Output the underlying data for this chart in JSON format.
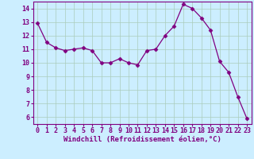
{
  "x": [
    0,
    1,
    2,
    3,
    4,
    5,
    6,
    7,
    8,
    9,
    10,
    11,
    12,
    13,
    14,
    15,
    16,
    17,
    18,
    19,
    20,
    21,
    22,
    23
  ],
  "y": [
    12.9,
    11.5,
    11.1,
    10.9,
    11.0,
    11.1,
    10.9,
    10.0,
    10.0,
    10.3,
    10.0,
    9.85,
    10.9,
    11.0,
    12.0,
    12.7,
    14.3,
    14.0,
    13.3,
    12.4,
    10.1,
    9.3,
    7.5,
    5.9
  ],
  "line_color": "#800080",
  "marker": "D",
  "marker_size": 2.5,
  "bg_color": "#cceeff",
  "grid_color": "#aaccbb",
  "xlabel": "Windchill (Refroidissement éolien,°C)",
  "xlim": [
    -0.5,
    23.5
  ],
  "ylim": [
    5.5,
    14.5
  ],
  "yticks": [
    6,
    7,
    8,
    9,
    10,
    11,
    12,
    13,
    14
  ],
  "xticks": [
    0,
    1,
    2,
    3,
    4,
    5,
    6,
    7,
    8,
    9,
    10,
    11,
    12,
    13,
    14,
    15,
    16,
    17,
    18,
    19,
    20,
    21,
    22,
    23
  ],
  "xlabel_fontsize": 6.5,
  "tick_fontsize": 6.0
}
